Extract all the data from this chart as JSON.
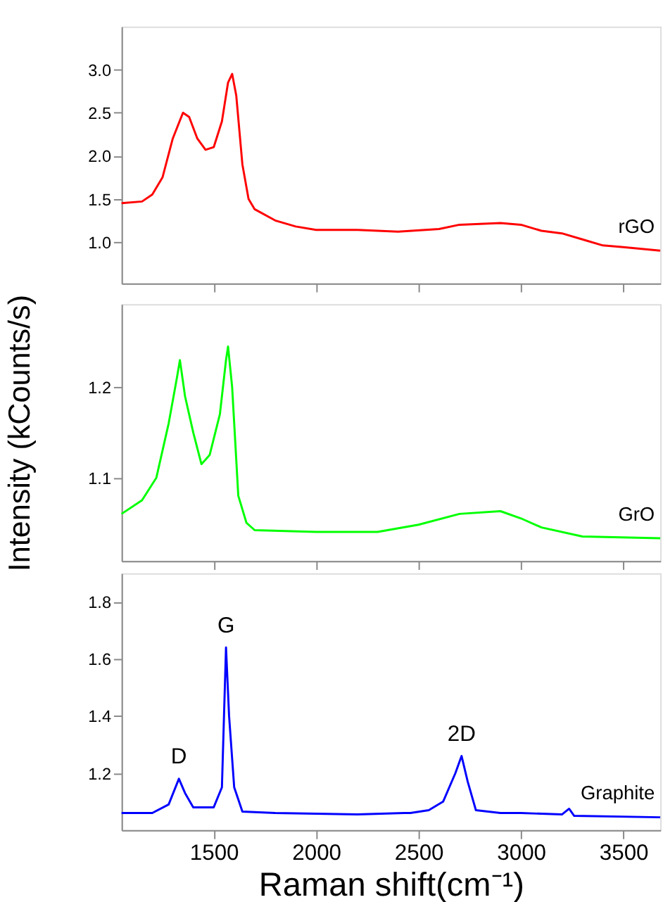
{
  "chart_data": [
    {
      "type": "line",
      "xlim": [
        1050,
        3680
      ],
      "xticks": [
        1500,
        2000,
        2500,
        3000,
        3500
      ],
      "ylim": [
        0.52,
        3.5
      ],
      "yticks": [
        {
          "value": 1,
          "label": "1.0"
        },
        1.5,
        {
          "value": 2,
          "label": "2.0"
        },
        2.5,
        {
          "value": 3,
          "label": "3.0"
        }
      ],
      "tick_labels": "y",
      "grid": false,
      "x": [
        1050,
        1150,
        1200,
        1250,
        1300,
        1350,
        1380,
        1420,
        1460,
        1500,
        1540,
        1570,
        1590,
        1610,
        1640,
        1670,
        1700,
        1800,
        1900,
        2000,
        2200,
        2400,
        2600,
        2700,
        2900,
        3000,
        3100,
        3200,
        3300,
        3400,
        3500,
        3680
      ],
      "series": [
        {
          "name": "rGO",
          "color": "#ff0000",
          "values": [
            1.45,
            1.47,
            1.55,
            1.75,
            2.2,
            2.5,
            2.45,
            2.2,
            2.07,
            2.1,
            2.4,
            2.85,
            2.95,
            2.7,
            1.9,
            1.5,
            1.38,
            1.25,
            1.18,
            1.14,
            1.14,
            1.12,
            1.15,
            1.2,
            1.22,
            1.2,
            1.13,
            1.1,
            1.03,
            0.96,
            0.94,
            0.9
          ]
        }
      ]
    },
    {
      "type": "line",
      "xlim": [
        1050,
        3680
      ],
      "xticks": [
        1500,
        2000,
        2500,
        3000,
        3500
      ],
      "ylim": [
        1.008,
        1.292
      ],
      "yticks": [
        1.1,
        1.2
      ],
      "tick_labels": "y",
      "grid": false,
      "ylabel": "Intensity (kCounts/s)",
      "x": [
        1050,
        1150,
        1220,
        1280,
        1320,
        1335,
        1360,
        1400,
        1440,
        1480,
        1530,
        1560,
        1570,
        1590,
        1620,
        1660,
        1700,
        2000,
        2300,
        2500,
        2700,
        2900,
        3000,
        3100,
        3300,
        3680
      ],
      "series": [
        {
          "name": "GrO",
          "color": "#00ff00",
          "values": [
            1.06,
            1.075,
            1.1,
            1.16,
            1.21,
            1.23,
            1.19,
            1.15,
            1.115,
            1.125,
            1.17,
            1.23,
            1.245,
            1.2,
            1.08,
            1.05,
            1.042,
            1.04,
            1.04,
            1.048,
            1.06,
            1.063,
            1.055,
            1.045,
            1.035,
            1.033
          ]
        }
      ]
    },
    {
      "type": "line",
      "xlim": [
        1050,
        3680
      ],
      "xticks": [
        1500,
        2000,
        2500,
        3000,
        3500
      ],
      "ylim": [
        1.0,
        1.9
      ],
      "yticks": [
        1.2,
        1.4,
        1.6,
        1.8
      ],
      "grid": false,
      "xlabel": "Raman shift(cm⁻¹)",
      "x": [
        1050,
        1200,
        1280,
        1330,
        1360,
        1400,
        1500,
        1540,
        1560,
        1575,
        1600,
        1640,
        1800,
        2200,
        2430,
        2460,
        2550,
        2620,
        2680,
        2710,
        2740,
        2780,
        2900,
        3000,
        3200,
        3235,
        3260,
        3680
      ],
      "series": [
        {
          "name": "Graphite",
          "color": "#0000ff",
          "values": [
            1.06,
            1.06,
            1.09,
            1.18,
            1.13,
            1.08,
            1.08,
            1.15,
            1.64,
            1.4,
            1.15,
            1.065,
            1.06,
            1.055,
            1.06,
            1.06,
            1.07,
            1.1,
            1.2,
            1.26,
            1.17,
            1.07,
            1.06,
            1.06,
            1.055,
            1.075,
            1.05,
            1.045
          ]
        }
      ],
      "annotations": [
        {
          "text": "D",
          "x": 1330,
          "y": 1.18
        },
        {
          "text": "G",
          "x": 1560,
          "y": 1.64
        },
        {
          "text": "2D",
          "x": 2710,
          "y": 1.26
        }
      ]
    }
  ]
}
